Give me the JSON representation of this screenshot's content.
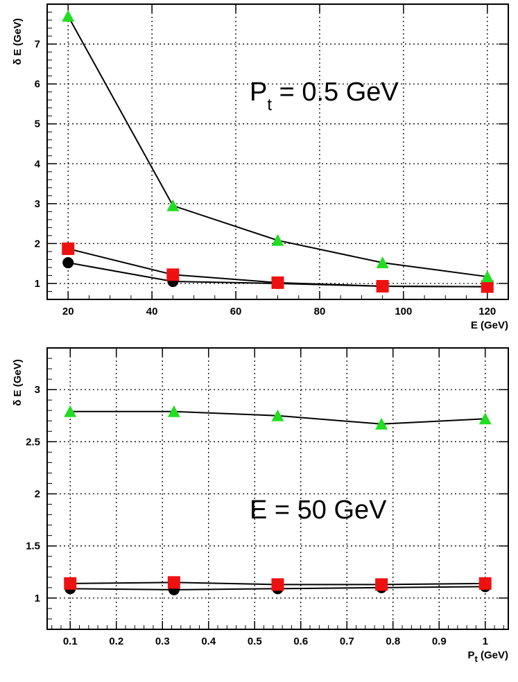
{
  "chart_data": [
    {
      "type": "line",
      "title": "",
      "annotation": {
        "main": "P",
        "sub": "t",
        "rest": " = 0.5 GeV"
      },
      "xlabel": "E (GeV)",
      "ylabel": "δ E (GeV)",
      "xlim": [
        15,
        125
      ],
      "ylim": [
        0.6,
        8.0
      ],
      "xticks": [
        20,
        40,
        60,
        80,
        100,
        120
      ],
      "xtick_labels": [
        "20",
        "40",
        "60",
        "80",
        "100",
        "120"
      ],
      "yticks": [
        1,
        2,
        3,
        4,
        5,
        6,
        7
      ],
      "ytick_labels": [
        "1",
        "2",
        "3",
        "4",
        "5",
        "6",
        "7"
      ],
      "grid": true,
      "x": [
        20,
        45,
        70,
        95,
        120
      ],
      "series": [
        {
          "name": "triangle",
          "marker": "triangle",
          "color": "#22dd22",
          "values": [
            7.7,
            2.95,
            2.08,
            1.52,
            1.17
          ]
        },
        {
          "name": "square",
          "marker": "square",
          "color": "#ee1111",
          "values": [
            1.87,
            1.22,
            1.02,
            0.93,
            0.92
          ]
        },
        {
          "name": "circle",
          "marker": "circle",
          "color": "#000000",
          "values": [
            1.52,
            1.05,
            1.0,
            0.93,
            0.92
          ]
        }
      ]
    },
    {
      "type": "line",
      "title": "",
      "annotation": {
        "main": "E = 50 GeV",
        "sub": "",
        "rest": ""
      },
      "xlabel": "P",
      "xlabel_sub": "t",
      "xlabel_rest": " (GeV)",
      "ylabel": "δ E (GeV)",
      "xlim": [
        0.05,
        1.05
      ],
      "ylim": [
        0.7,
        3.4
      ],
      "xticks": [
        0.1,
        0.2,
        0.3,
        0.4,
        0.5,
        0.6,
        0.7,
        0.8,
        0.9,
        1.0
      ],
      "xtick_labels": [
        "0.1",
        "0.2",
        "0.3",
        "0.4",
        "0.5",
        "0.6",
        "0.7",
        "0.8",
        "0.9",
        "1"
      ],
      "yticks": [
        1,
        1.5,
        2,
        2.5,
        3
      ],
      "ytick_labels": [
        "1",
        "1.5",
        "2",
        "2.5",
        "3"
      ],
      "grid": true,
      "x": [
        0.1,
        0.325,
        0.55,
        0.775,
        1.0
      ],
      "series": [
        {
          "name": "triangle",
          "marker": "triangle",
          "color": "#22dd22",
          "values": [
            2.79,
            2.79,
            2.75,
            2.67,
            2.72
          ]
        },
        {
          "name": "square",
          "marker": "square",
          "color": "#ee1111",
          "values": [
            1.14,
            1.15,
            1.13,
            1.13,
            1.14
          ]
        },
        {
          "name": "circle",
          "marker": "circle",
          "color": "#000000",
          "values": [
            1.09,
            1.08,
            1.09,
            1.1,
            1.11
          ]
        }
      ]
    }
  ]
}
